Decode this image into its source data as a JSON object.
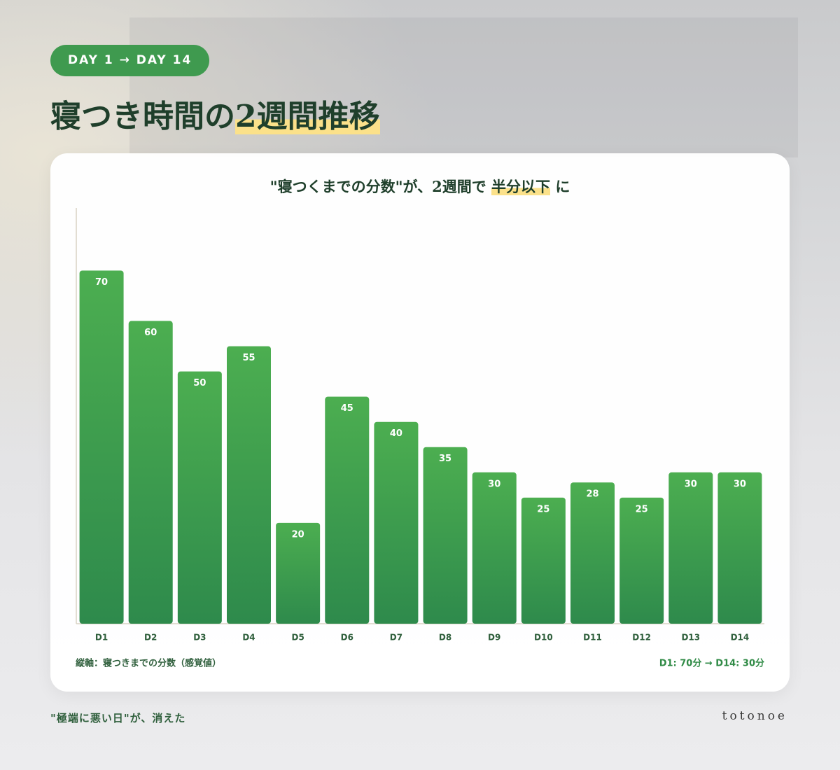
{
  "header": {
    "badge": "DAY 1 → DAY 14",
    "title": "寝つき時間の",
    "title_highlight": "2週間推移"
  },
  "chart_data": {
    "type": "bar",
    "title": "\"寝つくまでの分数\"が、2週間で",
    "title_highlight": "半分以下",
    "title_end": "に",
    "categories": [
      "D1",
      "D2",
      "D3",
      "D4",
      "D5",
      "D6",
      "D7",
      "D8",
      "D9",
      "D10",
      "D11",
      "D12",
      "D13",
      "D14"
    ],
    "values": [
      70,
      60,
      50,
      55,
      20,
      45,
      40,
      35,
      30,
      25,
      28,
      25,
      30,
      30
    ],
    "color": "#4cae50",
    "ylim": [
      0,
      82
    ],
    "y_axis_note": "縦軸：寝つきまでの分数（感覚値）",
    "summary": "D1: 70分 → D14: 30分"
  },
  "footer": {
    "tagline": "\"極端に悪い日\"が、消えた",
    "brand": "totonoe"
  }
}
